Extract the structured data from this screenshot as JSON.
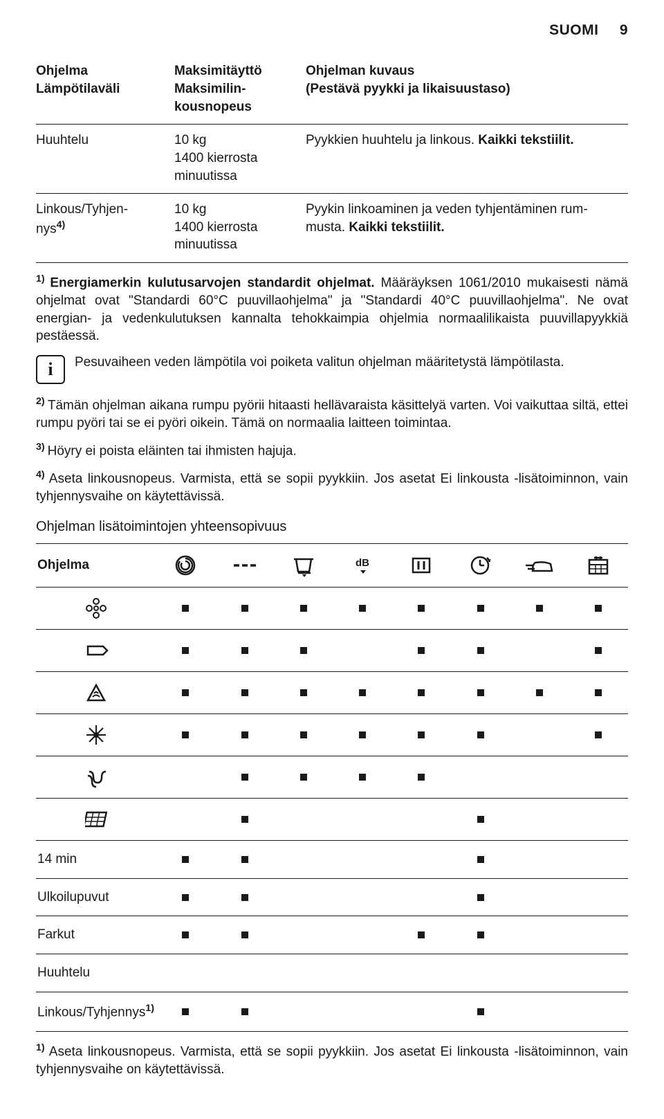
{
  "header": {
    "lang": "SUOMI",
    "page": "9"
  },
  "descTable": {
    "head": {
      "c1a": "Ohjelma",
      "c1b": "Lämpötilaväli",
      "c2a": "Maksimitäyttö",
      "c2b": "Maksimilin-",
      "c2c": "kousnopeus",
      "c3a": "Ohjelman kuvaus",
      "c3b": "(Pestävä pyykki ja likaisuustaso)"
    },
    "rows": [
      {
        "c1": "Huuhtelu",
        "c2a": "10 kg",
        "c2b": "1400 kierrosta",
        "c2c": "minuutissa",
        "c3_pre": "Pyykkien huuhtelu ja linkous. ",
        "c3_bold": "Kaikki tekstiilit."
      },
      {
        "c1_pre": "Linkous/Tyhjen-",
        "c1_post": "nys",
        "c1_sup": "4)",
        "c2a": "10 kg",
        "c2b": "1400 kierrosta",
        "c2c": "minuutissa",
        "c3_pre": "Pyykin linkoaminen ja veden tyhjentäminen rum-",
        "c3_pre2": "musta. ",
        "c3_bold": "Kaikki tekstiilit."
      }
    ]
  },
  "notes": {
    "n1_sup": "1) ",
    "n1_bold": "Energiamerkin kulutusarvojen standardit ohjelmat.",
    "n1_rest": " Määräyksen 1061/2010 mukaisesti nämä ohjelmat ovat \"Standardi 60°C puuvillaohjelma\" ja \"Standardi 40°C puuvillaohjelma\". Ne ovat energian- ja vedenkulutuksen kannalta tehokkaimpia ohjelmia normaalilikaista puuvillapyykkiä pestäessä.",
    "info": "Pesuvaiheen veden lämpötila voi poiketa valitun ohjelman määritetystä lämpötilasta.",
    "n2_sup": "2) ",
    "n2": "Tämän ohjelman aikana rumpu pyörii hitaasti hellävaraista käsittelyä varten. Voi vaikuttaa siltä, ettei rumpu pyöri tai se ei pyöri oikein. Tämä on normaalia laitteen toimintaa.",
    "n3_sup": "3) ",
    "n3": "Höyry ei poista eläinten tai ihmisten hajuja.",
    "n4_sup": "4) ",
    "n4": "Aseta linkousnopeus. Varmista, että se sopii pyykkiin. Jos asetat Ei linkousta -lisätoiminnon, vain tyhjennysvaihe on käytettävissä."
  },
  "matrix": {
    "title": "Ohjelman lisätoimintojen yhteensopivuus",
    "headLabel": "Ohjelma",
    "colIcons": [
      "spiral",
      "dashes",
      "tub",
      "db",
      "pause",
      "clock",
      "iron",
      "cal"
    ],
    "rows": [
      {
        "icon": "flower",
        "label": "",
        "marks": [
          1,
          1,
          1,
          1,
          1,
          1,
          1,
          1
        ]
      },
      {
        "icon": "tag",
        "label": "",
        "marks": [
          1,
          1,
          1,
          0,
          1,
          1,
          0,
          1
        ]
      },
      {
        "icon": "tri",
        "label": "",
        "marks": [
          1,
          1,
          1,
          1,
          1,
          1,
          1,
          1
        ]
      },
      {
        "icon": "snow",
        "label": "",
        "marks": [
          1,
          1,
          1,
          1,
          1,
          1,
          0,
          1
        ]
      },
      {
        "icon": "coil",
        "label": "",
        "marks": [
          0,
          1,
          1,
          1,
          1,
          0,
          0,
          0
        ]
      },
      {
        "icon": "grid",
        "label": "",
        "marks": [
          0,
          1,
          0,
          0,
          0,
          1,
          0,
          0
        ]
      },
      {
        "icon": "",
        "label": "14 min",
        "marks": [
          1,
          1,
          0,
          0,
          0,
          1,
          0,
          0
        ]
      },
      {
        "icon": "",
        "label": "Ulkoilupuvut",
        "marks": [
          1,
          1,
          0,
          0,
          0,
          1,
          0,
          0
        ]
      },
      {
        "icon": "",
        "label": "Farkut",
        "marks": [
          1,
          1,
          0,
          0,
          1,
          1,
          0,
          0
        ]
      },
      {
        "icon": "",
        "label": "Huuhtelu",
        "marks": [
          0,
          0,
          0,
          0,
          0,
          0,
          0,
          0
        ]
      },
      {
        "icon": "",
        "label_pre": "Linkous/Tyhjennys",
        "label_sup": "1)",
        "marks": [
          1,
          1,
          0,
          0,
          0,
          1,
          0,
          0
        ]
      }
    ]
  },
  "footnote": {
    "sup": "1) ",
    "text": "Aseta linkousnopeus. Varmista, että se sopii pyykkiin. Jos asetat Ei linkousta -lisätoiminnon, vain tyhjennysvaihe on käytettävissä."
  }
}
